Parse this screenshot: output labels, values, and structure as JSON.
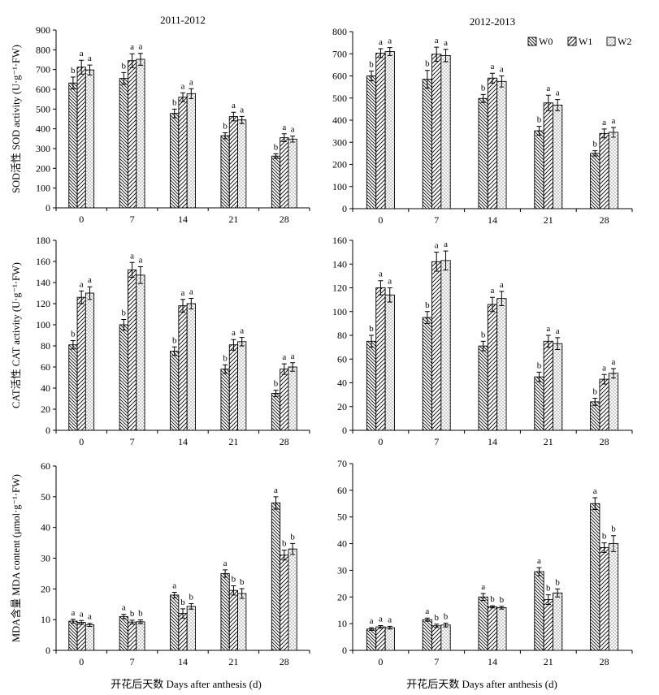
{
  "legend": {
    "position": "top-right",
    "entries": [
      "W0",
      "W1",
      "W2"
    ]
  },
  "xlabel": "开花后天数 Days after anthesis (d)",
  "chart_data": [
    {
      "type": "bar",
      "title": "2011-2012",
      "ylabel": "SOD活性 SOD activity (U·g⁻¹·FW)",
      "ylim": [
        0,
        900
      ],
      "yticks": [
        0,
        100,
        200,
        300,
        400,
        500,
        600,
        700,
        800,
        900
      ],
      "categories": [
        "0",
        "7",
        "14",
        "21",
        "28"
      ],
      "series": [
        {
          "name": "W0",
          "values": [
            632,
            655,
            478,
            365,
            262
          ],
          "errors": [
            30,
            30,
            22,
            15,
            12
          ],
          "letters": [
            "b",
            "b",
            "b",
            "b",
            "b"
          ]
        },
        {
          "name": "W1",
          "values": [
            712,
            745,
            560,
            462,
            355
          ],
          "errors": [
            35,
            35,
            22,
            22,
            20
          ],
          "letters": [
            "a",
            "a",
            "a",
            "a",
            "a"
          ]
        },
        {
          "name": "W2",
          "values": [
            698,
            752,
            578,
            445,
            348
          ],
          "errors": [
            25,
            30,
            25,
            18,
            15
          ],
          "letters": [
            "a",
            "a",
            "a",
            "a",
            "a"
          ]
        }
      ]
    },
    {
      "type": "bar",
      "title": "2012-2013",
      "ylabel": "",
      "ylim": [
        0,
        800
      ],
      "yticks": [
        0,
        100,
        200,
        300,
        400,
        500,
        600,
        700,
        800
      ],
      "categories": [
        "0",
        "7",
        "14",
        "21",
        "28"
      ],
      "series": [
        {
          "name": "W0",
          "values": [
            600,
            585,
            498,
            352,
            250
          ],
          "errors": [
            22,
            40,
            18,
            20,
            12
          ],
          "letters": [
            "b",
            "b",
            "b",
            "b",
            "b"
          ]
        },
        {
          "name": "W1",
          "values": [
            703,
            698,
            590,
            478,
            340
          ],
          "errors": [
            20,
            32,
            22,
            35,
            20
          ],
          "letters": [
            "a",
            "a",
            "a",
            "a",
            "a"
          ]
        },
        {
          "name": "W2",
          "values": [
            710,
            692,
            575,
            468,
            345
          ],
          "errors": [
            18,
            28,
            25,
            25,
            22
          ],
          "letters": [
            "a",
            "a",
            "a",
            "a",
            "a"
          ]
        }
      ]
    },
    {
      "type": "bar",
      "title": "",
      "ylabel": "CAT活性 CAT activity (U·g⁻¹·FW)",
      "ylim": [
        0,
        180
      ],
      "yticks": [
        0,
        20,
        40,
        60,
        80,
        100,
        120,
        140,
        160,
        180
      ],
      "categories": [
        "0",
        "7",
        "14",
        "21",
        "28"
      ],
      "series": [
        {
          "name": "W0",
          "values": [
            81,
            100,
            75,
            58,
            35
          ],
          "errors": [
            4,
            5,
            4,
            4,
            3
          ],
          "letters": [
            "b",
            "b",
            "b",
            "b",
            "b"
          ]
        },
        {
          "name": "W1",
          "values": [
            126,
            152,
            118,
            81,
            58
          ],
          "errors": [
            6,
            7,
            6,
            5,
            5
          ],
          "letters": [
            "a",
            "a",
            "a",
            "a",
            "a"
          ]
        },
        {
          "name": "W2",
          "values": [
            130,
            147,
            120,
            84,
            60
          ],
          "errors": [
            6,
            8,
            5,
            4,
            4
          ],
          "letters": [
            "a",
            "a",
            "a",
            "a",
            "a"
          ]
        }
      ]
    },
    {
      "type": "bar",
      "title": "",
      "ylabel": "",
      "ylim": [
        0,
        160
      ],
      "yticks": [
        0,
        20,
        40,
        60,
        80,
        100,
        120,
        140,
        160
      ],
      "categories": [
        "0",
        "7",
        "14",
        "21",
        "28"
      ],
      "series": [
        {
          "name": "W0",
          "values": [
            75,
            95,
            71,
            45,
            24
          ],
          "errors": [
            5,
            5,
            4,
            4,
            3
          ],
          "letters": [
            "b",
            "b",
            "b",
            "b",
            "b"
          ]
        },
        {
          "name": "W1",
          "values": [
            120,
            142,
            106,
            75,
            43
          ],
          "errors": [
            6,
            8,
            6,
            5,
            4
          ],
          "letters": [
            "a",
            "a",
            "a",
            "a",
            "a"
          ]
        },
        {
          "name": "W2",
          "values": [
            114,
            143,
            111,
            73,
            48
          ],
          "errors": [
            6,
            8,
            6,
            5,
            4
          ],
          "letters": [
            "a",
            "a",
            "a",
            "a",
            "a"
          ]
        }
      ]
    },
    {
      "type": "bar",
      "title": "",
      "ylabel": "MDA含量 MDA content (μmol·g⁻¹·FW)",
      "ylim": [
        0,
        60
      ],
      "yticks": [
        0,
        10,
        20,
        30,
        40,
        50,
        60
      ],
      "categories": [
        "0",
        "7",
        "14",
        "21",
        "28"
      ],
      "series": [
        {
          "name": "W0",
          "values": [
            9.5,
            11,
            18,
            25,
            48
          ],
          "errors": [
            0.6,
            0.7,
            0.9,
            1.2,
            2.0
          ],
          "letters": [
            "a",
            "a",
            "a",
            "a",
            "a"
          ]
        },
        {
          "name": "W1",
          "values": [
            9.1,
            9.2,
            12,
            19.5,
            31
          ],
          "errors": [
            0.6,
            0.6,
            1.5,
            1.5,
            1.6
          ],
          "letters": [
            "a",
            "b",
            "b",
            "b",
            "b"
          ]
        },
        {
          "name": "W2",
          "values": [
            8.3,
            9.3,
            14.3,
            18.5,
            33
          ],
          "errors": [
            0.5,
            0.6,
            0.9,
            1.6,
            1.8
          ],
          "letters": [
            "a",
            "b",
            "b",
            "b",
            "b"
          ]
        }
      ]
    },
    {
      "type": "bar",
      "title": "",
      "ylabel": "",
      "ylim": [
        0,
        70
      ],
      "yticks": [
        0,
        10,
        20,
        30,
        40,
        50,
        60,
        70
      ],
      "categories": [
        "0",
        "7",
        "14",
        "21",
        "28"
      ],
      "series": [
        {
          "name": "W0",
          "values": [
            8,
            11.5,
            20,
            29.5,
            55
          ],
          "errors": [
            0.5,
            0.6,
            1.3,
            1.5,
            2.2
          ],
          "letters": [
            "a",
            "a",
            "a",
            "a",
            "a"
          ]
        },
        {
          "name": "W1",
          "values": [
            8.8,
            9.2,
            16.3,
            19,
            38.5
          ],
          "errors": [
            0.5,
            0.6,
            0.4,
            1.8,
            1.8
          ],
          "letters": [
            "a",
            "b",
            "b",
            "b",
            "b"
          ]
        },
        {
          "name": "W2",
          "values": [
            8.5,
            9.5,
            16,
            21.5,
            40
          ],
          "errors": [
            0.5,
            0.7,
            0.5,
            1.5,
            3.0
          ],
          "letters": [
            "a",
            "b",
            "b",
            "b",
            "b"
          ]
        }
      ]
    }
  ]
}
